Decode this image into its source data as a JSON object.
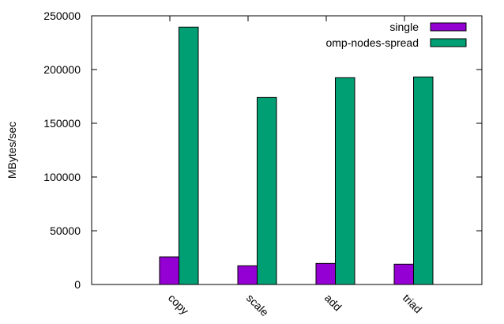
{
  "chart_data": {
    "type": "bar",
    "title": "",
    "xlabel": "",
    "ylabel": "MBytes/sec",
    "categories": [
      "copy",
      "scale",
      "add",
      "triad"
    ],
    "series": [
      {
        "name": "single",
        "color": "#9400d3",
        "values": [
          25700,
          17400,
          19600,
          18900
        ]
      },
      {
        "name": "omp-nodes-spread",
        "color": "#009e73",
        "values": [
          239500,
          174000,
          192400,
          193100
        ]
      }
    ],
    "ylim": [
      0,
      250000
    ],
    "yticks": [
      0,
      50000,
      100000,
      150000,
      200000,
      250000
    ],
    "ytick_labels": [
      "0",
      "50000",
      "100000",
      "150000",
      "200000",
      "250000"
    ],
    "legend": "top-right",
    "grid": false
  }
}
